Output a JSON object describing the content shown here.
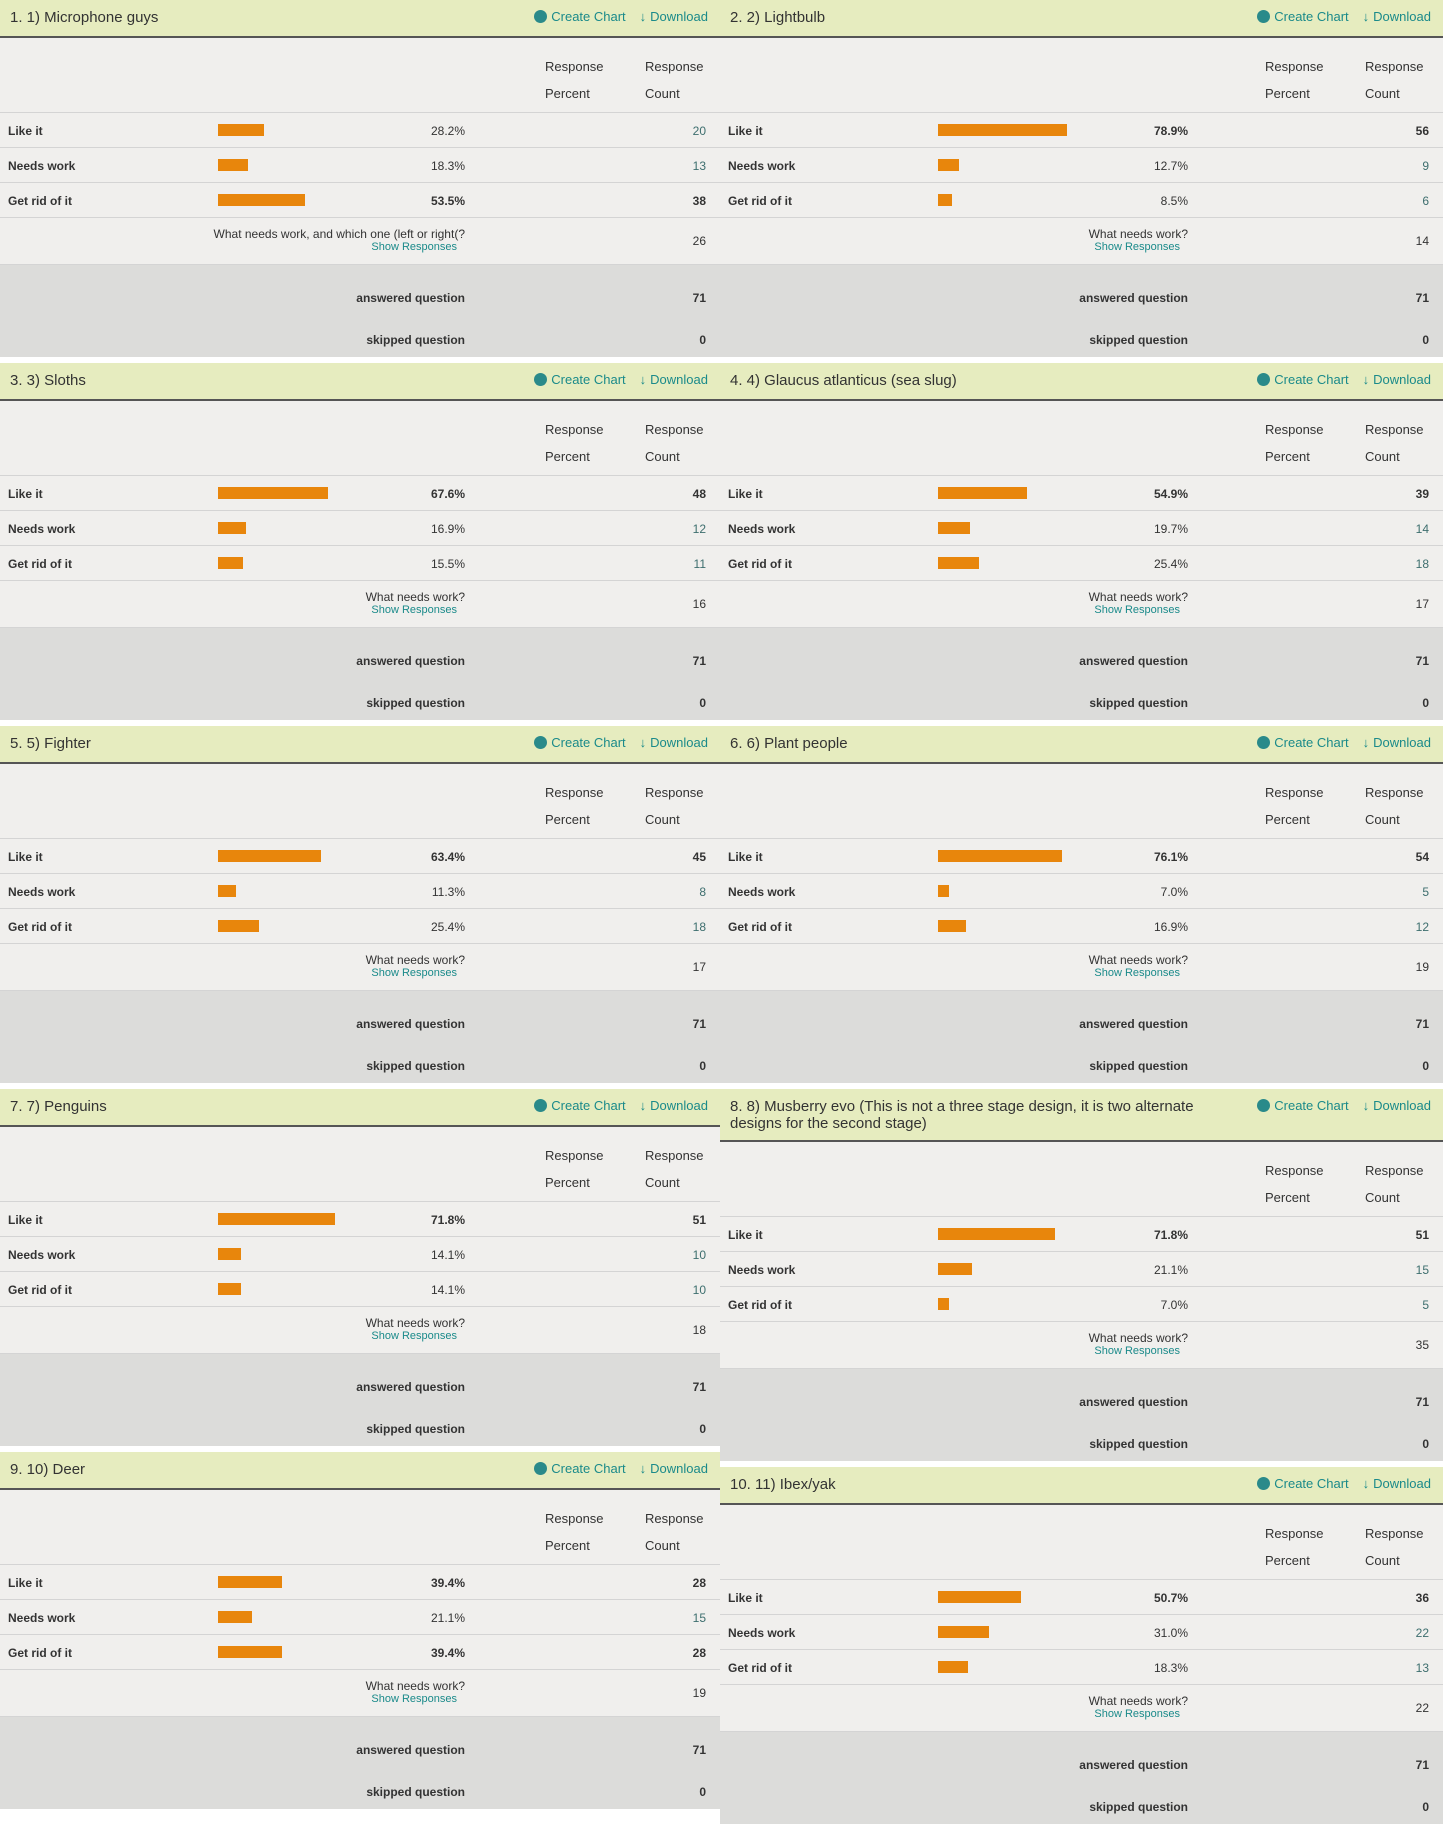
{
  "labels": {
    "create_chart": "Create Chart",
    "download": "Download",
    "response": "Response",
    "percent": "Percent",
    "count": "Count",
    "show_responses": "Show Responses",
    "answered": "answered question",
    "skipped": "skipped question"
  },
  "colors": {
    "bar": "#e8860c",
    "header_bg": "#e6ecbf",
    "link": "#1a8a8a"
  },
  "panels": [
    {
      "title": "1. 1) Microphone guys",
      "rows": [
        {
          "label": "Like it",
          "percent": "28.2%",
          "value": 28.2,
          "count": "20"
        },
        {
          "label": "Needs work",
          "percent": "18.3%",
          "value": 18.3,
          "count": "13"
        },
        {
          "label": "Get rid of it",
          "percent": "53.5%",
          "value": 53.5,
          "count": "38",
          "bold": true
        }
      ],
      "comment_q": "What needs work, and which one (left or right(?",
      "comment_count": "26",
      "answered": "71",
      "skipped": "0"
    },
    {
      "title": "2. 2) Lightbulb",
      "rows": [
        {
          "label": "Like it",
          "percent": "78.9%",
          "value": 78.9,
          "count": "56",
          "bold": true
        },
        {
          "label": "Needs work",
          "percent": "12.7%",
          "value": 12.7,
          "count": "9"
        },
        {
          "label": "Get rid of it",
          "percent": "8.5%",
          "value": 8.5,
          "count": "6"
        }
      ],
      "comment_q": "What needs work?",
      "comment_count": "14",
      "answered": "71",
      "skipped": "0"
    },
    {
      "title": "3. 3) Sloths",
      "rows": [
        {
          "label": "Like it",
          "percent": "67.6%",
          "value": 67.6,
          "count": "48",
          "bold": true
        },
        {
          "label": "Needs work",
          "percent": "16.9%",
          "value": 16.9,
          "count": "12"
        },
        {
          "label": "Get rid of it",
          "percent": "15.5%",
          "value": 15.5,
          "count": "11"
        }
      ],
      "comment_q": "What needs work?",
      "comment_count": "16",
      "answered": "71",
      "skipped": "0"
    },
    {
      "title": "4. 4) Glaucus atlanticus (sea slug)",
      "rows": [
        {
          "label": "Like it",
          "percent": "54.9%",
          "value": 54.9,
          "count": "39",
          "bold": true
        },
        {
          "label": "Needs work",
          "percent": "19.7%",
          "value": 19.7,
          "count": "14"
        },
        {
          "label": "Get rid of it",
          "percent": "25.4%",
          "value": 25.4,
          "count": "18"
        }
      ],
      "comment_q": "What needs work?",
      "comment_count": "17",
      "answered": "71",
      "skipped": "0"
    },
    {
      "title": "5. 5) Fighter",
      "rows": [
        {
          "label": "Like it",
          "percent": "63.4%",
          "value": 63.4,
          "count": "45",
          "bold": true
        },
        {
          "label": "Needs work",
          "percent": "11.3%",
          "value": 11.3,
          "count": "8"
        },
        {
          "label": "Get rid of it",
          "percent": "25.4%",
          "value": 25.4,
          "count": "18"
        }
      ],
      "comment_q": "What needs work?",
      "comment_count": "17",
      "answered": "71",
      "skipped": "0"
    },
    {
      "title": "6. 6) Plant people",
      "rows": [
        {
          "label": "Like it",
          "percent": "76.1%",
          "value": 76.1,
          "count": "54",
          "bold": true
        },
        {
          "label": "Needs work",
          "percent": "7.0%",
          "value": 7.0,
          "count": "5"
        },
        {
          "label": "Get rid of it",
          "percent": "16.9%",
          "value": 16.9,
          "count": "12"
        }
      ],
      "comment_q": "What needs work?",
      "comment_count": "19",
      "answered": "71",
      "skipped": "0"
    },
    {
      "title": "7. 7) Penguins",
      "rows": [
        {
          "label": "Like it",
          "percent": "71.8%",
          "value": 71.8,
          "count": "51",
          "bold": true
        },
        {
          "label": "Needs work",
          "percent": "14.1%",
          "value": 14.1,
          "count": "10"
        },
        {
          "label": "Get rid of it",
          "percent": "14.1%",
          "value": 14.1,
          "count": "10"
        }
      ],
      "comment_q": "What needs work?",
      "comment_count": "18",
      "answered": "71",
      "skipped": "0"
    },
    {
      "title": "8. 8) Musberry evo (This is not a three stage design, it is two alternate designs for the second stage)",
      "rows": [
        {
          "label": "Like it",
          "percent": "71.8%",
          "value": 71.8,
          "count": "51",
          "bold": true
        },
        {
          "label": "Needs work",
          "percent": "21.1%",
          "value": 21.1,
          "count": "15"
        },
        {
          "label": "Get rid of it",
          "percent": "7.0%",
          "value": 7.0,
          "count": "5"
        }
      ],
      "comment_q": "What needs work?",
      "comment_count": "35",
      "answered": "71",
      "skipped": "0"
    },
    {
      "title": "9. 10) Deer",
      "rows": [
        {
          "label": "Like it",
          "percent": "39.4%",
          "value": 39.4,
          "count": "28",
          "bold": true
        },
        {
          "label": "Needs work",
          "percent": "21.1%",
          "value": 21.1,
          "count": "15"
        },
        {
          "label": "Get rid of it",
          "percent": "39.4%",
          "value": 39.4,
          "count": "28",
          "bold": true
        }
      ],
      "comment_q": "What needs work?",
      "comment_count": "19",
      "answered": "71",
      "skipped": "0"
    },
    {
      "title": "10. 11) Ibex/yak",
      "rows": [
        {
          "label": "Like it",
          "percent": "50.7%",
          "value": 50.7,
          "count": "36",
          "bold": true
        },
        {
          "label": "Needs work",
          "percent": "31.0%",
          "value": 31.0,
          "count": "22"
        },
        {
          "label": "Get rid of it",
          "percent": "18.3%",
          "value": 18.3,
          "count": "13"
        }
      ],
      "comment_q": "What needs work?",
      "comment_count": "22",
      "answered": "71",
      "skipped": "0"
    }
  ]
}
